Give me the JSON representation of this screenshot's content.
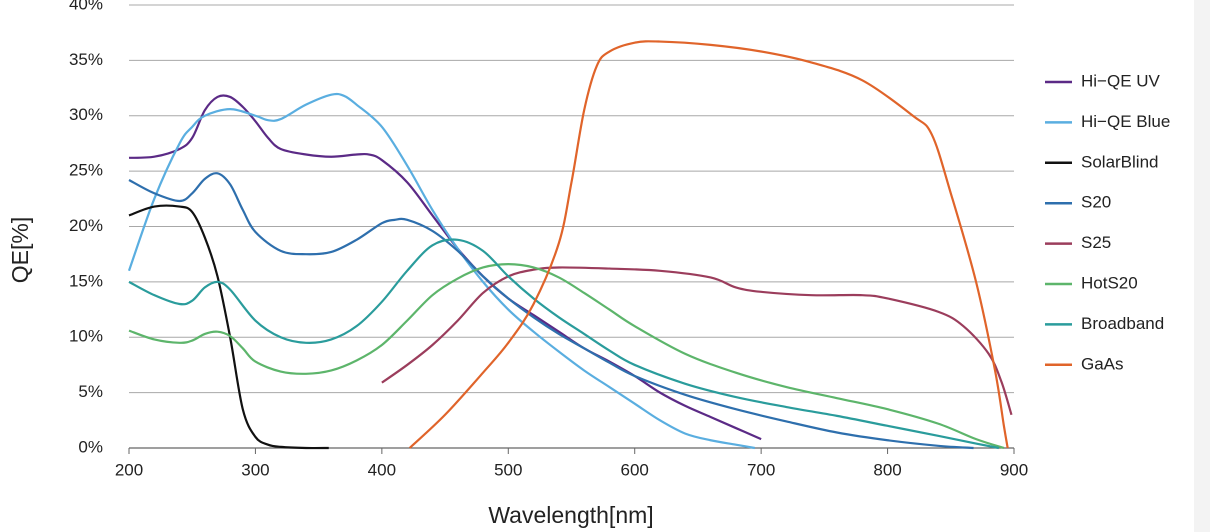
{
  "chart_data": {
    "type": "line",
    "x_label": "Wavelength[nm]",
    "y_label": "QE[%]",
    "xlim": [
      200,
      900
    ],
    "xticks": [
      200,
      300,
      400,
      500,
      600,
      700,
      800,
      900
    ],
    "ylim": [
      0,
      40
    ],
    "yticks": [
      {
        "value": 0,
        "label": "0%"
      },
      {
        "value": 5,
        "label": "5%"
      },
      {
        "value": 10,
        "label": "10%"
      },
      {
        "value": 15,
        "label": "15%"
      },
      {
        "value": 20,
        "label": "20%"
      },
      {
        "value": 25,
        "label": "25%"
      },
      {
        "value": 30,
        "label": "30%"
      },
      {
        "value": 35,
        "label": "35%"
      },
      {
        "value": 40,
        "label": "40%"
      }
    ],
    "grid": true,
    "legend": "right",
    "series": [
      {
        "name": "Hi−QE UV",
        "color": "#5b2a86",
        "x": [
          200,
          220,
          240,
          250,
          260,
          270,
          280,
          290,
          300,
          310,
          320,
          340,
          360,
          380,
          390,
          400,
          420,
          440,
          460,
          480,
          500,
          520,
          540,
          560,
          580,
          600,
          620,
          640,
          660,
          680,
          700
        ],
        "values": [
          26.2,
          26.3,
          27,
          28,
          30.5,
          31.7,
          31.7,
          30.8,
          29.5,
          28,
          27,
          26.5,
          26.3,
          26.5,
          26.5,
          26,
          24,
          21,
          18,
          15.5,
          13.5,
          12,
          10.5,
          9,
          7.8,
          6.5,
          5,
          3.8,
          2.8,
          1.8,
          0.8
        ]
      },
      {
        "name": "Hi−QE Blue",
        "color": "#5aaee0",
        "x": [
          200,
          220,
          240,
          250,
          260,
          280,
          300,
          310,
          320,
          340,
          360,
          370,
          380,
          400,
          420,
          440,
          460,
          480,
          500,
          520,
          540,
          560,
          580,
          600,
          620,
          640,
          660,
          680,
          695
        ],
        "values": [
          16,
          22.5,
          27.5,
          29,
          30,
          30.6,
          30,
          29.6,
          29.7,
          31,
          31.9,
          31.8,
          31,
          29,
          25.5,
          21.5,
          18,
          15,
          12.5,
          10.5,
          8.7,
          7,
          5.5,
          4,
          2.5,
          1.3,
          0.7,
          0.3,
          0
        ]
      },
      {
        "name": "SolarBlind",
        "color": "#111111",
        "x": [
          200,
          220,
          240,
          250,
          260,
          270,
          280,
          290,
          300,
          310,
          320,
          340,
          358
        ],
        "values": [
          21,
          21.8,
          21.8,
          21.3,
          19,
          15.5,
          10,
          3.5,
          1,
          0.3,
          0.1,
          0,
          0
        ]
      },
      {
        "name": "S20",
        "color": "#2e6fad",
        "x": [
          200,
          220,
          240,
          250,
          260,
          270,
          280,
          290,
          300,
          320,
          340,
          360,
          380,
          400,
          410,
          420,
          440,
          460,
          480,
          500,
          520,
          540,
          560,
          580,
          600,
          640,
          680,
          720,
          760,
          800,
          840,
          868
        ],
        "values": [
          24.2,
          23,
          22.3,
          23,
          24.3,
          24.8,
          23.8,
          21.5,
          19.5,
          17.8,
          17.5,
          17.7,
          18.8,
          20.3,
          20.6,
          20.6,
          19.6,
          17.8,
          15.5,
          13.5,
          11.8,
          10.3,
          9,
          7.7,
          6.5,
          4.8,
          3.5,
          2.4,
          1.4,
          0.7,
          0.2,
          0
        ]
      },
      {
        "name": "S25",
        "color": "#9b3d5c",
        "x": [
          400,
          420,
          440,
          460,
          480,
          500,
          520,
          540,
          580,
          620,
          660,
          680,
          700,
          740,
          780,
          800,
          840,
          860,
          880,
          890,
          898
        ],
        "values": [
          5.9,
          7.5,
          9.3,
          11.5,
          14,
          15.5,
          16.1,
          16.3,
          16.2,
          16,
          15.4,
          14.5,
          14.1,
          13.8,
          13.8,
          13.5,
          12.3,
          11,
          8.5,
          6,
          3
        ]
      },
      {
        "name": "HotS20",
        "color": "#5db56b",
        "x": [
          200,
          220,
          240,
          250,
          260,
          270,
          280,
          290,
          300,
          320,
          340,
          360,
          380,
          400,
          420,
          440,
          460,
          480,
          500,
          520,
          540,
          560,
          580,
          600,
          640,
          680,
          720,
          760,
          800,
          840,
          870,
          892
        ],
        "values": [
          10.6,
          9.8,
          9.5,
          9.7,
          10.3,
          10.5,
          10.1,
          9,
          7.8,
          6.9,
          6.7,
          7,
          7.9,
          9.3,
          11.5,
          13.8,
          15.3,
          16.3,
          16.6,
          16.3,
          15.4,
          14,
          12.5,
          11,
          8.5,
          6.8,
          5.5,
          4.5,
          3.5,
          2.2,
          0.8,
          0
        ]
      },
      {
        "name": "Broadband",
        "color": "#2a9c9c",
        "x": [
          200,
          220,
          240,
          250,
          260,
          270,
          280,
          300,
          320,
          340,
          360,
          380,
          400,
          420,
          440,
          460,
          480,
          500,
          520,
          540,
          560,
          580,
          600,
          640,
          680,
          720,
          760,
          800,
          840,
          870,
          888
        ],
        "values": [
          15,
          13.8,
          13,
          13.3,
          14.5,
          15,
          14.3,
          11.5,
          10,
          9.5,
          9.8,
          11,
          13.2,
          16,
          18.3,
          18.8,
          17.8,
          15.5,
          13.5,
          11.8,
          10.3,
          8.8,
          7.5,
          5.8,
          4.6,
          3.7,
          2.9,
          2,
          1.1,
          0.4,
          0
        ]
      },
      {
        "name": "GaAs",
        "color": "#e0642a",
        "x": [
          422,
          450,
          480,
          500,
          520,
          540,
          550,
          560,
          570,
          580,
          600,
          620,
          660,
          700,
          740,
          780,
          820,
          835,
          850,
          870,
          885,
          892,
          895
        ],
        "values": [
          0,
          3,
          6.8,
          9.5,
          13,
          18.5,
          24,
          30.5,
          34.5,
          35.8,
          36.6,
          36.7,
          36.4,
          35.8,
          34.8,
          33.2,
          30,
          28.3,
          23,
          15,
          7,
          2,
          0
        ]
      }
    ]
  }
}
